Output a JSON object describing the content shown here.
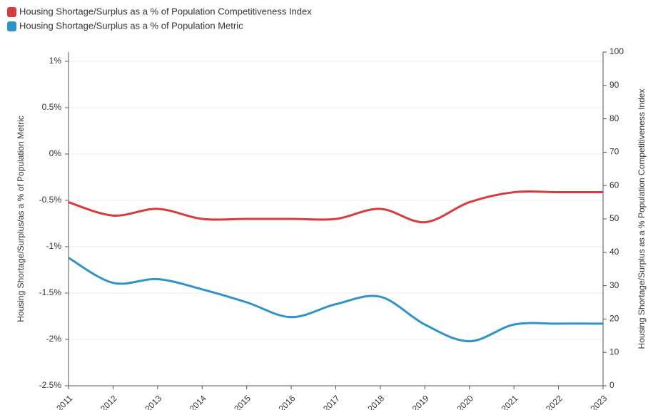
{
  "chart_data": {
    "type": "line",
    "categories": [
      "2011",
      "2012",
      "2013",
      "2014",
      "2015",
      "2016",
      "2017",
      "2018",
      "2019",
      "2020",
      "2021",
      "2022",
      "2023"
    ],
    "series": [
      {
        "name": "Housing Shortage/Surplus as a % of Population Competitiveness Index",
        "color": "#d63c3f",
        "axis": "y2",
        "values": [
          55,
          51,
          53,
          50,
          50,
          50,
          50,
          53,
          49,
          55,
          58,
          58,
          58
        ]
      },
      {
        "name": "Housing Shortage/Surplus as a % of Population Metric",
        "color": "#2e93c8",
        "values": [
          -1.12,
          -1.39,
          -1.35,
          -1.46,
          -1.6,
          -1.76,
          -1.62,
          -1.54,
          -1.84,
          -2.02,
          -1.84,
          -1.83,
          -1.83
        ]
      }
    ],
    "ylabel": "Housing Shortage/Surplus/as a % of Population Metric",
    "y2label": "Housing Shortage/Surplus as a % Population Competitiveness Index",
    "ylim": [
      -2.5,
      1.1
    ],
    "yticks": [
      {
        "value": -2.5,
        "label": "-2.5%"
      },
      {
        "value": -2,
        "label": "-2%"
      },
      {
        "value": -1.5,
        "label": "-1.5%"
      },
      {
        "value": -1,
        "label": "-1%"
      },
      {
        "value": -0.5,
        "label": "-0.5%"
      },
      {
        "value": 0,
        "label": "0%"
      },
      {
        "value": 0.5,
        "label": "0.5%"
      },
      {
        "value": 1,
        "label": "1%"
      }
    ],
    "y2lim": [
      0,
      100
    ],
    "y2ticks": [
      0,
      10,
      20,
      30,
      40,
      50,
      60,
      70,
      80,
      90,
      100
    ],
    "grid": true
  }
}
